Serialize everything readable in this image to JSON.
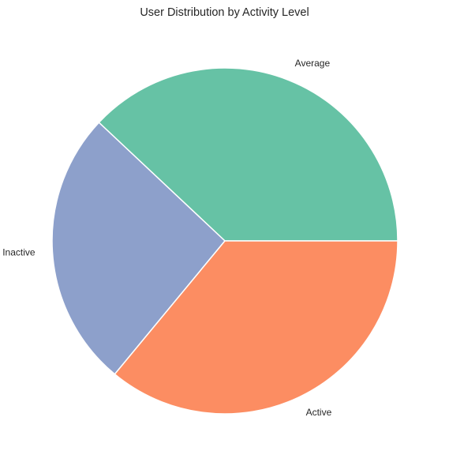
{
  "chart_data": {
    "type": "pie",
    "title": "User Distribution by Activity Level",
    "categories": [
      "Average",
      "Inactive",
      "Active"
    ],
    "values": [
      38,
      26,
      36
    ],
    "colors": [
      "#66c2a5",
      "#8da0cb",
      "#fc8d62"
    ],
    "start_angle_deg": 0,
    "direction": "counterclockwise",
    "edge_color": "#ffffff"
  }
}
